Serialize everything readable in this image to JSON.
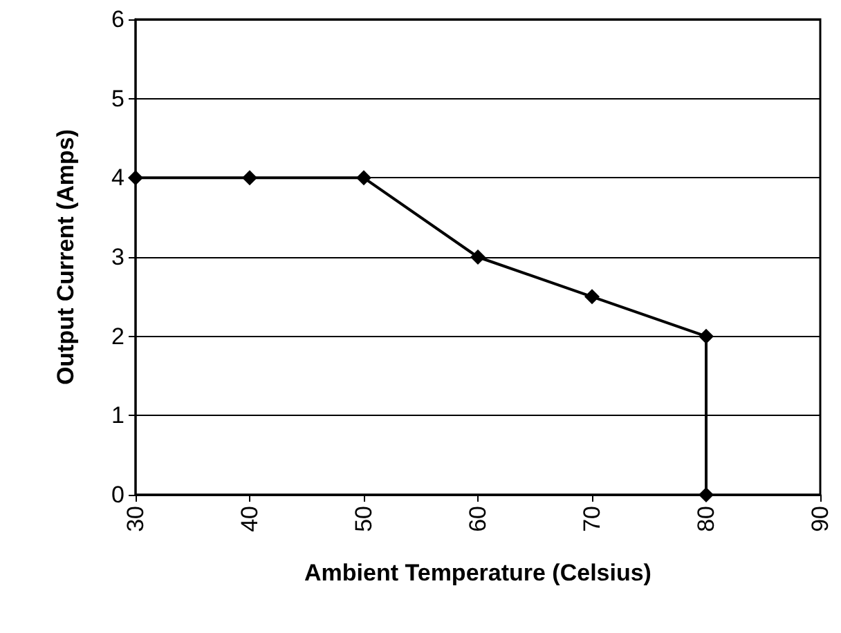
{
  "chart_data": {
    "type": "line",
    "xlabel": "Ambient Temperature (Celsius)",
    "ylabel": "Output Current (Amps)",
    "x": [
      30,
      40,
      50,
      60,
      70,
      80,
      80
    ],
    "series": [
      {
        "color": "#000000",
        "values": [
          4,
          4,
          4,
          3,
          2.5,
          2,
          0
        ]
      }
    ],
    "xlim": [
      30,
      90
    ],
    "xticks": [
      30,
      40,
      50,
      60,
      70,
      80,
      90
    ],
    "ylim": [
      0,
      6
    ],
    "yticks": [
      0,
      1,
      2,
      3,
      4,
      5,
      6
    ],
    "grid": "y",
    "marker": "diamond",
    "line_style": "solid"
  }
}
